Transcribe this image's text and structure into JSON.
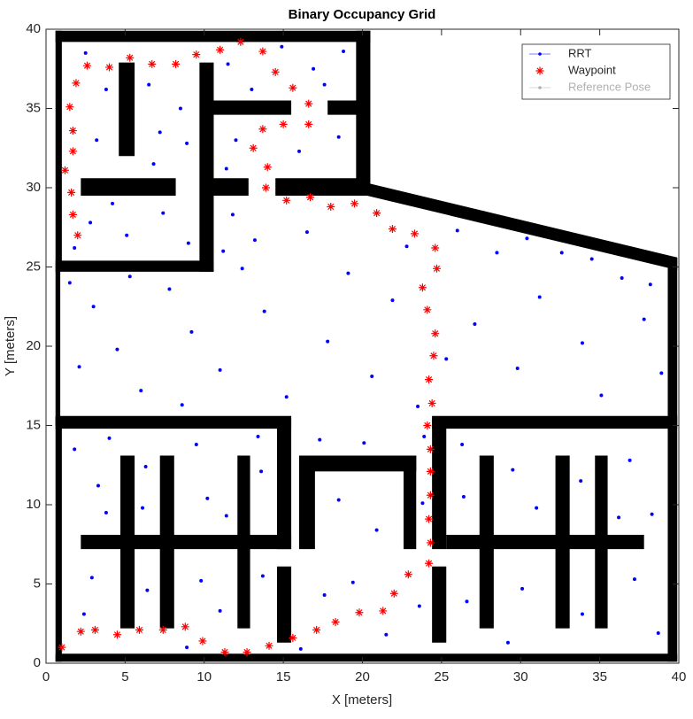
{
  "chart_data": {
    "type": "scatter",
    "title": "Binary Occupancy Grid",
    "x_label": "X [meters]",
    "y_label": "Y [meters]",
    "xlim": [
      0,
      40
    ],
    "ylim": [
      0,
      40
    ],
    "xticks": [
      0,
      5,
      10,
      15,
      20,
      25,
      30,
      35,
      40
    ],
    "yticks": [
      0,
      5,
      10,
      15,
      20,
      25,
      30,
      35,
      40
    ],
    "grid": false,
    "legend": "northeast",
    "obstacle_color": "#000000",
    "obstacles": [
      {
        "x": [
          0.6,
          20.5,
          20.5,
          0.6
        ],
        "y": [
          39.2,
          39.2,
          39.9,
          39.9
        ]
      },
      {
        "x": [
          0.6,
          1.0,
          1.0,
          0.6
        ],
        "y": [
          24.8,
          24.8,
          39.9,
          39.9
        ]
      },
      {
        "x": [
          0.6,
          0.9,
          0.9,
          0.6
        ],
        "y": [
          15.0,
          15.0,
          24.8,
          24.8
        ]
      },
      {
        "x": [
          0.6,
          1.0,
          1.0,
          0.6
        ],
        "y": [
          0.1,
          0.1,
          15.5,
          15.5
        ]
      },
      {
        "x": [
          0.6,
          39.9,
          39.9,
          0.6
        ],
        "y": [
          0.1,
          0.1,
          0.6,
          0.6
        ]
      },
      {
        "x": [
          39.3,
          39.9,
          39.9,
          39.3
        ],
        "y": [
          0.1,
          0.1,
          25.6,
          25.6
        ]
      },
      {
        "x": [
          19.6,
          20.5,
          20.5,
          19.6
        ],
        "y": [
          29.5,
          29.5,
          39.9,
          39.9
        ]
      },
      {
        "x": [
          20.3,
          39.9,
          39.9,
          20.3
        ],
        "y": [
          30.3,
          25.6,
          24.8,
          29.5
        ]
      },
      {
        "x": [
          0.6,
          10.6,
          10.6,
          0.6
        ],
        "y": [
          24.7,
          24.7,
          25.4,
          25.4
        ]
      },
      {
        "x": [
          9.7,
          10.6,
          10.6,
          9.7
        ],
        "y": [
          24.7,
          24.7,
          37.9,
          37.9
        ]
      },
      {
        "x": [
          4.6,
          5.6,
          5.6,
          4.6
        ],
        "y": [
          32.0,
          32.0,
          37.9,
          37.9
        ]
      },
      {
        "x": [
          2.2,
          8.2,
          8.2,
          2.2
        ],
        "y": [
          29.5,
          29.5,
          30.6,
          30.6
        ]
      },
      {
        "x": [
          10.5,
          12.8,
          12.8,
          10.5
        ],
        "y": [
          29.5,
          29.5,
          30.6,
          30.6
        ]
      },
      {
        "x": [
          14.5,
          20.3,
          20.3,
          14.5
        ],
        "y": [
          29.5,
          29.5,
          30.6,
          30.6
        ]
      },
      {
        "x": [
          10.5,
          15.5,
          15.5,
          10.5
        ],
        "y": [
          34.6,
          34.6,
          35.5,
          35.5
        ]
      },
      {
        "x": [
          17.8,
          19.7,
          19.7,
          17.8
        ],
        "y": [
          34.6,
          34.6,
          35.5,
          35.5
        ]
      },
      {
        "x": [
          0.6,
          15.5,
          15.5,
          0.6
        ],
        "y": [
          14.8,
          14.8,
          15.6,
          15.6
        ]
      },
      {
        "x": [
          24.4,
          39.9,
          39.9,
          24.4
        ],
        "y": [
          14.8,
          14.8,
          15.6,
          15.6
        ]
      },
      {
        "x": [
          14.6,
          15.5,
          15.5,
          14.6
        ],
        "y": [
          7.2,
          7.2,
          15.5,
          15.5
        ]
      },
      {
        "x": [
          14.6,
          15.5,
          15.5,
          14.6
        ],
        "y": [
          1.3,
          1.3,
          6.1,
          6.1
        ]
      },
      {
        "x": [
          24.4,
          25.3,
          25.3,
          24.4
        ],
        "y": [
          7.2,
          7.2,
          15.5,
          15.5
        ]
      },
      {
        "x": [
          24.4,
          25.3,
          25.3,
          24.4
        ],
        "y": [
          1.3,
          1.3,
          6.1,
          6.1
        ]
      },
      {
        "x": [
          16.0,
          23.4,
          23.4,
          16.0
        ],
        "y": [
          12.1,
          12.1,
          13.1,
          13.1
        ]
      },
      {
        "x": [
          16.0,
          17.0,
          17.0,
          16.0
        ],
        "y": [
          7.2,
          7.2,
          13.1,
          13.1
        ]
      },
      {
        "x": [
          22.6,
          23.4,
          23.4,
          22.6
        ],
        "y": [
          7.2,
          7.2,
          13.1,
          13.1
        ]
      },
      {
        "x": [
          2.2,
          15.5,
          15.5,
          2.2
        ],
        "y": [
          7.2,
          7.2,
          8.1,
          8.1
        ]
      },
      {
        "x": [
          4.7,
          5.6,
          5.6,
          4.7
        ],
        "y": [
          2.2,
          2.2,
          13.1,
          13.1
        ]
      },
      {
        "x": [
          7.2,
          8.1,
          8.1,
          7.2
        ],
        "y": [
          2.2,
          2.2,
          13.1,
          13.1
        ]
      },
      {
        "x": [
          12.1,
          12.9,
          12.9,
          12.1
        ],
        "y": [
          2.2,
          2.2,
          13.1,
          13.1
        ]
      },
      {
        "x": [
          25.3,
          37.8,
          37.8,
          25.3
        ],
        "y": [
          7.2,
          7.2,
          8.1,
          8.1
        ]
      },
      {
        "x": [
          27.4,
          28.3,
          28.3,
          27.4
        ],
        "y": [
          2.2,
          2.2,
          13.1,
          13.1
        ]
      },
      {
        "x": [
          32.2,
          33.1,
          33.1,
          32.2
        ],
        "y": [
          2.2,
          2.2,
          13.1,
          13.1
        ]
      },
      {
        "x": [
          34.7,
          35.5,
          35.5,
          34.7
        ],
        "y": [
          2.2,
          2.2,
          13.1,
          13.1
        ]
      }
    ],
    "series": [
      {
        "name": "RRT",
        "color": "#0000ff",
        "marker": "dot",
        "x": [
          2.5,
          3.8,
          6.5,
          8.5,
          7.2,
          3.2,
          6.8,
          8.9,
          2.8,
          5.1,
          7.4,
          9.0,
          4.2,
          1.8,
          11.5,
          13,
          16.9,
          18.8,
          18.5,
          12,
          11.4,
          16,
          17.6,
          14.9,
          1.5,
          3,
          4.5,
          6,
          7.8,
          9.2,
          11,
          12.4,
          13.8,
          15.2,
          16.5,
          17.8,
          19.1,
          20.6,
          21.9,
          22.8,
          23.5,
          26,
          27.1,
          28.5,
          29.8,
          31.2,
          32.6,
          33.9,
          35.1,
          36.4,
          37.8,
          38.9,
          11.8,
          13.2,
          5.3,
          8.6,
          2.1,
          11.2,
          25.3,
          30.4,
          38.2,
          34.5,
          1.8,
          3.3,
          2.9,
          3.8,
          6.3,
          6.4,
          6.1,
          9.5,
          10.2,
          9.8,
          11.0,
          13.6,
          13.7,
          11.4,
          2.4,
          8.9,
          13.4,
          4.0,
          17.3,
          20.1,
          18.5,
          20.9,
          19.4,
          17.6,
          21.5,
          23.6,
          23.8,
          16.1,
          23.9,
          26.3,
          29.5,
          31,
          30.1,
          26.6,
          33.8,
          36.9,
          38.3,
          37.2,
          33.9,
          29.2,
          38.7,
          36.2,
          26.4
        ],
        "y": [
          38.5,
          36.2,
          36.5,
          35,
          33.5,
          33,
          31.5,
          32.8,
          27.8,
          27,
          28.4,
          26.5,
          29,
          26.2,
          37.8,
          36.2,
          37.5,
          38.6,
          33.2,
          33,
          31.2,
          32.3,
          36.5,
          38.9,
          24,
          22.5,
          19.8,
          17.2,
          23.6,
          20.9,
          18.5,
          24.9,
          22.2,
          16.8,
          27.2,
          20.3,
          24.6,
          18.1,
          22.9,
          26.3,
          16.2,
          27.3,
          21.4,
          25.9,
          18.6,
          23.1,
          25.9,
          20.2,
          16.9,
          24.3,
          21.7,
          18.3,
          28.3,
          26.7,
          24.4,
          16.3,
          18.7,
          26.0,
          19.2,
          26.8,
          23.9,
          25.5,
          13.5,
          11.2,
          5.4,
          9.5,
          12.4,
          4.6,
          9.8,
          13.8,
          10.4,
          5.2,
          3.3,
          12.1,
          5.5,
          9.3,
          3.1,
          1.0,
          14.3,
          14.2,
          14.1,
          13.9,
          10.3,
          8.4,
          5.1,
          4.3,
          1.8,
          3.6,
          10.1,
          0.9,
          14.3,
          13.8,
          12.2,
          9.8,
          4.7,
          3.9,
          11.5,
          12.8,
          9.4,
          5.3,
          3.1,
          1.3,
          1.9,
          9.2,
          10.5
        ]
      },
      {
        "name": "Waypoint",
        "color": "#ff0000",
        "marker": "star",
        "x": [
          1.0,
          2.2,
          3.1,
          4.5,
          5.9,
          7.4,
          8.8,
          9.9,
          11.3,
          12.7,
          14.1,
          15.6,
          17.1,
          18.3,
          19.8,
          21.3,
          22.0,
          22.9,
          24.2,
          24.3,
          24.2,
          24.3,
          24.3,
          24.3,
          24.1,
          24.4,
          24.2,
          24.5,
          24.6,
          24.1,
          23.8,
          24.7,
          24.6,
          23.3,
          21.9,
          20.9,
          19.5,
          18.0,
          16.7,
          15.2,
          13.9,
          14.0,
          13.1,
          13.7,
          15.0,
          16.6,
          16.6,
          15.6,
          14.5,
          13.7,
          12.3,
          11.0,
          9.5,
          8.2,
          6.7,
          5.3,
          4.0,
          2.6,
          1.9,
          1.5,
          1.7,
          1.7,
          1.2,
          1.6,
          1.7,
          2.0
        ],
        "y": [
          1.0,
          2.0,
          2.1,
          1.8,
          2.1,
          2.1,
          2.3,
          1.4,
          0.7,
          0.7,
          1.1,
          1.6,
          2.1,
          2.6,
          3.2,
          3.3,
          4.4,
          5.6,
          6.3,
          7.6,
          9.1,
          10.6,
          12.1,
          13.5,
          15.0,
          16.4,
          17.9,
          19.4,
          20.8,
          22.3,
          23.7,
          24.9,
          26.2,
          27.1,
          27.4,
          28.4,
          29.0,
          28.8,
          29.4,
          29.2,
          30.0,
          31.3,
          32.5,
          33.7,
          34.0,
          34.0,
          35.3,
          36.3,
          37.3,
          38.6,
          39.2,
          38.7,
          38.4,
          37.8,
          37.8,
          38.2,
          37.6,
          37.7,
          36.6,
          35.1,
          33.6,
          32.3,
          31.1,
          29.7,
          28.3,
          27.0
        ]
      },
      {
        "name": "Reference Pose",
        "color": "#b0b0b0",
        "marker": "dot",
        "x": [],
        "y": []
      }
    ]
  }
}
